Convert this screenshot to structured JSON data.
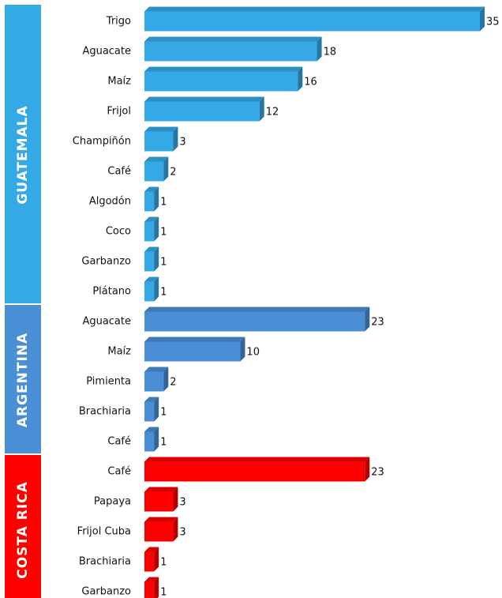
{
  "chart_data": {
    "type": "bar",
    "groups": [
      {
        "name": "GUATEMALA",
        "color": "#35a9e6",
        "categories": [
          "Trigo",
          "Aguacate",
          "Maíz",
          "Frijol",
          "Champiñón",
          "Café",
          "Algodón",
          "Coco",
          "Garbanzo",
          "Plátano"
        ],
        "values": [
          35,
          18,
          16,
          12,
          3,
          2,
          1,
          1,
          1,
          1
        ]
      },
      {
        "name": "ARGENTINA",
        "color": "#4a8ed6",
        "categories": [
          "Aguacate",
          "Maíz",
          "Pimienta",
          "Brachiaria",
          "Café"
        ],
        "values": [
          23,
          10,
          2,
          1,
          1
        ]
      },
      {
        "name": "COSTA RICA",
        "color": "#ff0000",
        "categories": [
          "Café",
          "Papaya",
          "Frijol Cuba",
          "Brachiaria",
          "Garbanzo"
        ],
        "values": [
          23,
          3,
          3,
          1,
          1
        ]
      }
    ]
  }
}
